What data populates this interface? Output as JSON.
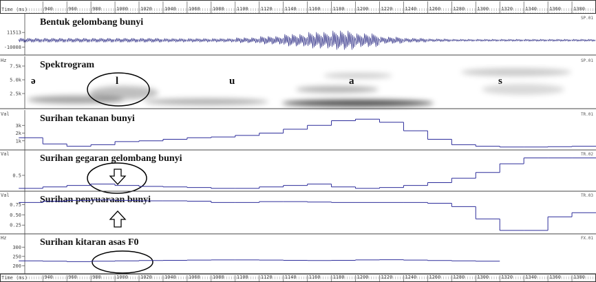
{
  "time_axis": {
    "label": "Time (ms)",
    "xlim": [
      925,
      1400
    ],
    "ticks": [
      940,
      960,
      980,
      1000,
      1020,
      1040,
      1060,
      1080,
      1100,
      1120,
      1140,
      1160,
      1180,
      1200,
      1220,
      1240,
      1260,
      1280,
      1300,
      1320,
      1340,
      1360,
      1380
    ]
  },
  "x": [
    930,
    950,
    970,
    990,
    1010,
    1030,
    1050,
    1070,
    1090,
    1110,
    1130,
    1150,
    1170,
    1190,
    1210,
    1230,
    1250,
    1270,
    1290,
    1310,
    1330,
    1350,
    1370,
    1390
  ],
  "panels": [
    {
      "title": "Bentuk gelombang bunyi",
      "code": "SP.01",
      "ylim": [
        -19700,
        37000
      ],
      "yticks": [
        11513,
        -10008
      ],
      "values": [
        3000,
        3000,
        3000,
        3000,
        3000,
        3000,
        2500,
        2500,
        2500,
        4000,
        6000,
        9000,
        12000,
        14000,
        10000,
        5000,
        3000,
        2000,
        1500,
        1500,
        1500,
        1500,
        1500,
        1500
      ]
    },
    {
      "title": "Spektrogram",
      "code": "SP.01",
      "unit": "Hz",
      "ylim": [
        0,
        9000
      ],
      "yticks": [
        {
          "value": 7500,
          "label": "7.5k"
        },
        {
          "value": 5000,
          "label": "5.0k"
        },
        {
          "value": 2500,
          "label": "2.5k"
        }
      ],
      "phones": [
        "ə",
        "l",
        "u",
        "a",
        "s"
      ]
    },
    {
      "title": "Surihan tekanan bunyi",
      "code": "TR.01",
      "unit": "Val",
      "ylim": [
        0,
        4800
      ],
      "yticks": [
        {
          "value": 3000,
          "label": "3k"
        },
        {
          "value": 2000,
          "label": "2k"
        },
        {
          "value": 1000,
          "label": "1k"
        }
      ],
      "values": [
        1400,
        600,
        300,
        500,
        900,
        1000,
        1200,
        1400,
        1500,
        1700,
        2000,
        2500,
        3000,
        3600,
        3800,
        3400,
        2300,
        1200,
        500,
        300,
        200,
        200,
        250,
        300
      ]
    },
    {
      "title": "Surihan gegaran gelombang bunyi",
      "code": "TR.02",
      "unit": "Val",
      "ylim": [
        0,
        1.33
      ],
      "yticks": [
        0.5
      ],
      "values": [
        0.05,
        0.1,
        0.15,
        0.2,
        0.15,
        0.12,
        0.1,
        0.08,
        0.05,
        0.05,
        0.1,
        0.15,
        0.2,
        0.1,
        0.05,
        0.08,
        0.15,
        0.25,
        0.4,
        0.6,
        0.9,
        1.1,
        1.1,
        1.1
      ]
    },
    {
      "title": "Surihan penyuaraan bunyi",
      "code": "TR.03",
      "unit": "Val",
      "ylim": [
        0.07,
        1.04
      ],
      "yticks": [
        {
          "value": 0.75,
          "label": "0.75"
        },
        {
          "value": 0.5,
          "label": "0.50"
        },
        {
          "value": 0.25,
          "label": "0.25"
        }
      ],
      "values": [
        0.8,
        0.83,
        0.85,
        0.86,
        0.85,
        0.84,
        0.84,
        0.83,
        0.8,
        0.8,
        0.82,
        0.82,
        0.81,
        0.8,
        0.8,
        0.8,
        0.8,
        0.78,
        0.7,
        0.4,
        0.12,
        0.12,
        0.45,
        0.55
      ]
    },
    {
      "title": "Surihan kitaran asas F0",
      "code": "FX.01",
      "unit": "Hz",
      "ylim": [
        164,
        364
      ],
      "yticks": [
        300,
        250,
        200
      ],
      "values": [
        226,
        224,
        222,
        224,
        226,
        228,
        229,
        230,
        231,
        231,
        230,
        229,
        228,
        229,
        231,
        232,
        230,
        228,
        226,
        224,
        null,
        null,
        null,
        null
      ]
    }
  ]
}
